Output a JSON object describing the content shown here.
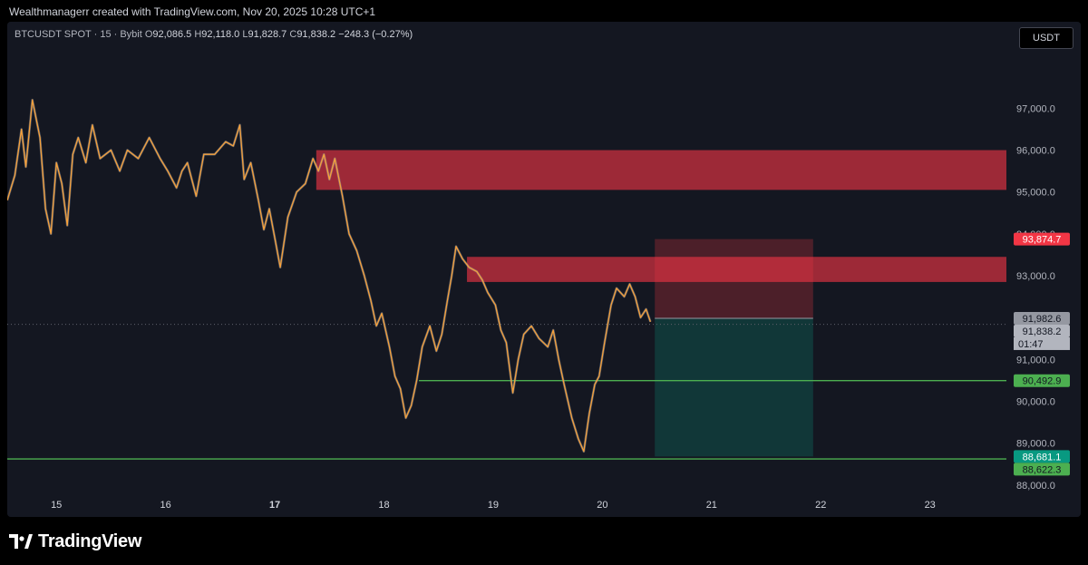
{
  "header": {
    "credit": "Wealthmanagerr created with TradingView.com, Nov 20, 2025 10:28 UTC+1"
  },
  "legend": {
    "symbol": "BTCUSDT SPOT · 15 · Bybit",
    "open_label": "O",
    "open": "92,086.5",
    "high_label": "H",
    "high": "92,118.0",
    "low_label": "L",
    "low": "91,828.7",
    "close_label": "C",
    "close": "91,838.2",
    "change": "−248.3 (−0.27%)"
  },
  "toolbar": {
    "currency": "USDT"
  },
  "brand": {
    "name": "TradingView",
    "icon": "tradingview-logo-icon"
  },
  "colors": {
    "background": "#141721",
    "candle": "#f7a13a",
    "candle_shadow": "#8a8f9c",
    "supply_zone": "#f23645",
    "support_line": "#4caf50",
    "short_risk": "#f23645",
    "short_reward": "#089981"
  },
  "chart_data": {
    "type": "line",
    "instrument": "BTCUSDT SPOT",
    "interval": "15",
    "exchange": "Bybit",
    "x_ticks": [
      {
        "label": "15",
        "bold": false
      },
      {
        "label": "16",
        "bold": false
      },
      {
        "label": "17",
        "bold": true
      },
      {
        "label": "18",
        "bold": false
      },
      {
        "label": "19",
        "bold": false
      },
      {
        "label": "20",
        "bold": false
      },
      {
        "label": "21",
        "bold": false
      },
      {
        "label": "22",
        "bold": false
      },
      {
        "label": "23",
        "bold": false
      }
    ],
    "y_ticks": [
      "97,000.0",
      "96,000.0",
      "95,000.0",
      "94,000.0",
      "93,000.0",
      "91,000.0",
      "90,000.0",
      "89,000.0",
      "88,000.0"
    ],
    "y_tick_values": [
      97000,
      96000,
      95000,
      94000,
      93000,
      91000,
      90000,
      89000,
      88000
    ],
    "ylim": [
      87800,
      98200
    ],
    "xlim": [
      14.55,
      23.7
    ],
    "price_path": [
      [
        14.55,
        94800
      ],
      [
        14.62,
        95400
      ],
      [
        14.68,
        96500
      ],
      [
        14.72,
        95600
      ],
      [
        14.78,
        97200
      ],
      [
        14.85,
        96300
      ],
      [
        14.9,
        94600
      ],
      [
        14.95,
        94000
      ],
      [
        15.0,
        95700
      ],
      [
        15.05,
        95200
      ],
      [
        15.1,
        94200
      ],
      [
        15.15,
        95900
      ],
      [
        15.2,
        96300
      ],
      [
        15.27,
        95700
      ],
      [
        15.33,
        96600
      ],
      [
        15.4,
        95800
      ],
      [
        15.5,
        96000
      ],
      [
        15.58,
        95500
      ],
      [
        15.65,
        96000
      ],
      [
        15.75,
        95800
      ],
      [
        15.85,
        96300
      ],
      [
        15.95,
        95800
      ],
      [
        16.02,
        95500
      ],
      [
        16.1,
        95100
      ],
      [
        16.15,
        95500
      ],
      [
        16.2,
        95700
      ],
      [
        16.28,
        94900
      ],
      [
        16.35,
        95900
      ],
      [
        16.45,
        95900
      ],
      [
        16.55,
        96200
      ],
      [
        16.62,
        96100
      ],
      [
        16.68,
        96600
      ],
      [
        16.72,
        95300
      ],
      [
        16.78,
        95700
      ],
      [
        16.85,
        94800
      ],
      [
        16.9,
        94100
      ],
      [
        16.95,
        94600
      ],
      [
        17.0,
        93900
      ],
      [
        17.05,
        93200
      ],
      [
        17.12,
        94400
      ],
      [
        17.2,
        95000
      ],
      [
        17.28,
        95200
      ],
      [
        17.35,
        95800
      ],
      [
        17.4,
        95500
      ],
      [
        17.45,
        95900
      ],
      [
        17.5,
        95300
      ],
      [
        17.55,
        95800
      ],
      [
        17.62,
        94900
      ],
      [
        17.68,
        94000
      ],
      [
        17.75,
        93600
      ],
      [
        17.82,
        93000
      ],
      [
        17.88,
        92400
      ],
      [
        17.93,
        91800
      ],
      [
        17.98,
        92100
      ],
      [
        18.05,
        91300
      ],
      [
        18.1,
        90600
      ],
      [
        18.15,
        90300
      ],
      [
        18.2,
        89600
      ],
      [
        18.25,
        89900
      ],
      [
        18.3,
        90500
      ],
      [
        18.35,
        91300
      ],
      [
        18.42,
        91800
      ],
      [
        18.48,
        91200
      ],
      [
        18.53,
        91600
      ],
      [
        18.58,
        92400
      ],
      [
        18.62,
        93000
      ],
      [
        18.66,
        93700
      ],
      [
        18.72,
        93400
      ],
      [
        18.78,
        93200
      ],
      [
        18.85,
        93100
      ],
      [
        18.9,
        92900
      ],
      [
        18.95,
        92600
      ],
      [
        19.02,
        92300
      ],
      [
        19.07,
        91700
      ],
      [
        19.12,
        91400
      ],
      [
        19.18,
        90200
      ],
      [
        19.23,
        91000
      ],
      [
        19.28,
        91600
      ],
      [
        19.35,
        91800
      ],
      [
        19.42,
        91500
      ],
      [
        19.5,
        91300
      ],
      [
        19.55,
        91700
      ],
      [
        19.6,
        91000
      ],
      [
        19.65,
        90400
      ],
      [
        19.72,
        89600
      ],
      [
        19.78,
        89100
      ],
      [
        19.83,
        88800
      ],
      [
        19.88,
        89700
      ],
      [
        19.93,
        90400
      ],
      [
        19.97,
        90600
      ],
      [
        20.02,
        91400
      ],
      [
        20.08,
        92300
      ],
      [
        20.13,
        92700
      ],
      [
        20.2,
        92500
      ],
      [
        20.25,
        92800
      ],
      [
        20.3,
        92500
      ],
      [
        20.35,
        92000
      ],
      [
        20.4,
        92200
      ],
      [
        20.44,
        91900
      ]
    ],
    "supply_zones": [
      {
        "from_x": 17.38,
        "to_x": 23.7,
        "low": 95050,
        "high": 96000
      },
      {
        "from_x": 18.76,
        "to_x": 23.7,
        "low": 92850,
        "high": 93450
      }
    ],
    "support_lines": [
      {
        "from_x": 18.32,
        "to_x": 23.7,
        "price": 90492.9
      },
      {
        "from_x": 14.55,
        "to_x": 23.7,
        "price": 88622.3
      }
    ],
    "short_position": {
      "from_x": 20.48,
      "to_x": 21.93,
      "entry": 91982.6,
      "stop": 93874.7,
      "target": 88681.1
    },
    "last_price": 91838.2,
    "countdown": "01:47",
    "price_labels": [
      {
        "text": "93,874.7",
        "value": 93874.7,
        "bg": "#f23645",
        "fg": "#ffffff"
      },
      {
        "text": "91,982.6",
        "value": 91982.6,
        "bg": "#9598a1",
        "fg": "#131722"
      },
      {
        "text": "91,838.2",
        "value": 91838.2,
        "bg": "#b2b5be",
        "fg": "#131722"
      },
      {
        "text": "90,492.9",
        "value": 90492.9,
        "bg": "#4caf50",
        "fg": "#131722"
      },
      {
        "text": "88,681.1",
        "value": 88681.1,
        "bg": "#089981",
        "fg": "#ffffff"
      },
      {
        "text": "88,622.3",
        "value": 88622.3,
        "bg": "#4caf50",
        "fg": "#131722"
      }
    ]
  }
}
